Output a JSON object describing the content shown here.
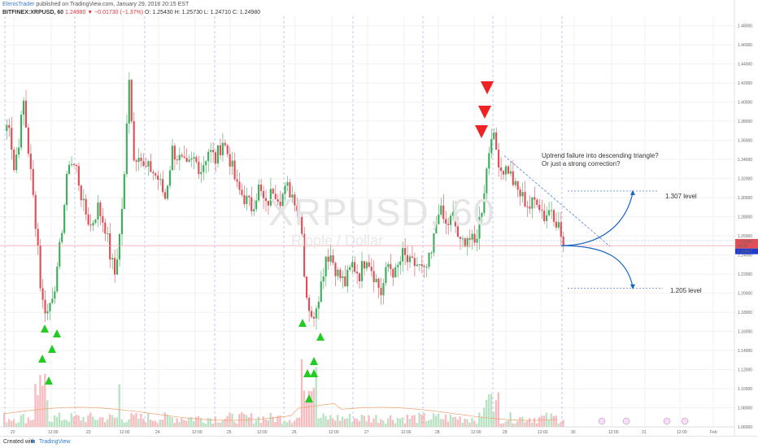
{
  "header": {
    "author": "ElenisTrader",
    "published": "published on TradingView.com, January 29, 2018 20:15 EST",
    "symbol": "BITFINEX:XRPUSD, 60",
    "change": "1.24980 ▼ −0.01730 (−1.37%)",
    "ohlc": "O: 1.25430 H: 1.25730 L: 1.24710 C: 1.24980"
  },
  "watermark": {
    "symbol": "XRPUSD, 60",
    "name": "Ripple / Dollar"
  },
  "annotations": {
    "question_line1": "Uptrend failure into descending triangle?",
    "question_line2": "Or just a strong correction?",
    "level_up": "1.307 level",
    "level_down": "1.205 level"
  },
  "footer": {
    "created_with": "Created with",
    "brand": "TradingView"
  },
  "price_tags": {
    "last": "1.24980",
    "time": "44:26",
    "other": "1.24907"
  },
  "colors": {
    "up": "#3dae5b",
    "down": "#e04e57",
    "signal_up": "#22cc22",
    "signal_down": "#ee2222",
    "curve": "#1565c0",
    "guide": "#3b6fd6"
  },
  "chart_data": {
    "type": "candlestick",
    "y_ticks": [
      "1.48000",
      "1.46000",
      "1.44000",
      "1.42000",
      "1.40000",
      "1.38000",
      "1.36000",
      "1.34000",
      "1.32000",
      "1.30000",
      "1.28000",
      "1.26000",
      "1.24000",
      "1.22000",
      "1.20000",
      "1.18000",
      "1.16000",
      "1.14000",
      "1.12000",
      "1.10000",
      "1.08000",
      "1.06000"
    ],
    "ylim": [
      1.06,
      1.49
    ],
    "x_ticks": [
      "22",
      "12:00",
      "23",
      "12:00",
      "24",
      "12:00",
      "25",
      "12:00",
      "26",
      "12:00",
      "27",
      "12:00",
      "28",
      "12:00",
      "29",
      "12:00",
      "30",
      "12:00",
      "31",
      "12:00",
      "Feb"
    ],
    "close_anchors": [
      [
        0,
        1.37
      ],
      [
        2,
        1.38
      ],
      [
        4,
        1.33
      ],
      [
        6,
        1.36
      ],
      [
        8,
        1.4
      ],
      [
        10,
        1.35
      ],
      [
        12,
        1.3
      ],
      [
        14,
        1.25
      ],
      [
        15,
        1.21
      ],
      [
        16,
        1.19
      ],
      [
        18,
        1.18
      ],
      [
        20,
        1.2
      ],
      [
        22,
        1.22
      ],
      [
        24,
        1.27
      ],
      [
        27,
        1.34
      ],
      [
        30,
        1.33
      ],
      [
        33,
        1.29
      ],
      [
        36,
        1.27
      ],
      [
        39,
        1.29
      ],
      [
        42,
        1.27
      ],
      [
        44,
        1.24
      ],
      [
        46,
        1.22
      ],
      [
        48,
        1.26
      ],
      [
        50,
        1.32
      ],
      [
        52,
        1.43
      ],
      [
        54,
        1.34
      ],
      [
        56,
        1.35
      ],
      [
        58,
        1.33
      ],
      [
        61,
        1.33
      ],
      [
        64,
        1.32
      ],
      [
        67,
        1.3
      ],
      [
        70,
        1.35
      ],
      [
        73,
        1.34
      ],
      [
        76,
        1.33
      ],
      [
        79,
        1.34
      ],
      [
        82,
        1.33
      ],
      [
        85,
        1.35
      ],
      [
        88,
        1.34
      ],
      [
        91,
        1.36
      ],
      [
        94,
        1.34
      ],
      [
        97,
        1.31
      ],
      [
        100,
        1.3
      ],
      [
        103,
        1.29
      ],
      [
        106,
        1.31
      ],
      [
        109,
        1.29
      ],
      [
        112,
        1.31
      ],
      [
        115,
        1.3
      ],
      [
        118,
        1.31
      ],
      [
        121,
        1.3
      ],
      [
        124,
        1.27
      ],
      [
        125,
        1.22
      ],
      [
        126,
        1.2
      ],
      [
        128,
        1.17
      ],
      [
        130,
        1.19
      ],
      [
        132,
        1.21
      ],
      [
        134,
        1.24
      ],
      [
        136,
        1.24
      ],
      [
        139,
        1.22
      ],
      [
        142,
        1.21
      ],
      [
        145,
        1.23
      ],
      [
        148,
        1.22
      ],
      [
        151,
        1.24
      ],
      [
        154,
        1.22
      ],
      [
        157,
        1.2
      ],
      [
        160,
        1.23
      ],
      [
        163,
        1.22
      ],
      [
        166,
        1.24
      ],
      [
        169,
        1.23
      ],
      [
        172,
        1.23
      ],
      [
        175,
        1.22
      ],
      [
        178,
        1.24
      ],
      [
        181,
        1.29
      ],
      [
        184,
        1.27
      ],
      [
        187,
        1.28
      ],
      [
        190,
        1.25
      ],
      [
        193,
        1.26
      ],
      [
        196,
        1.25
      ],
      [
        199,
        1.29
      ],
      [
        201,
        1.33
      ],
      [
        203,
        1.37
      ],
      [
        205,
        1.35
      ],
      [
        207,
        1.33
      ],
      [
        210,
        1.33
      ],
      [
        213,
        1.31
      ],
      [
        216,
        1.3
      ],
      [
        219,
        1.29
      ],
      [
        222,
        1.3
      ],
      [
        225,
        1.28
      ],
      [
        228,
        1.29
      ],
      [
        231,
        1.27
      ],
      [
        233,
        1.25
      ]
    ],
    "n_bars": 234,
    "signals_up_bars": [
      14,
      15,
      16,
      17,
      17,
      125,
      126,
      126,
      127,
      128,
      128
    ],
    "signals_down_bars": [
      202,
      202,
      202
    ],
    "levels": [
      {
        "label": "1.307 level",
        "value": 1.307
      },
      {
        "label": "1.205 level",
        "value": 1.205
      }
    ],
    "current_price": 1.2498
  }
}
